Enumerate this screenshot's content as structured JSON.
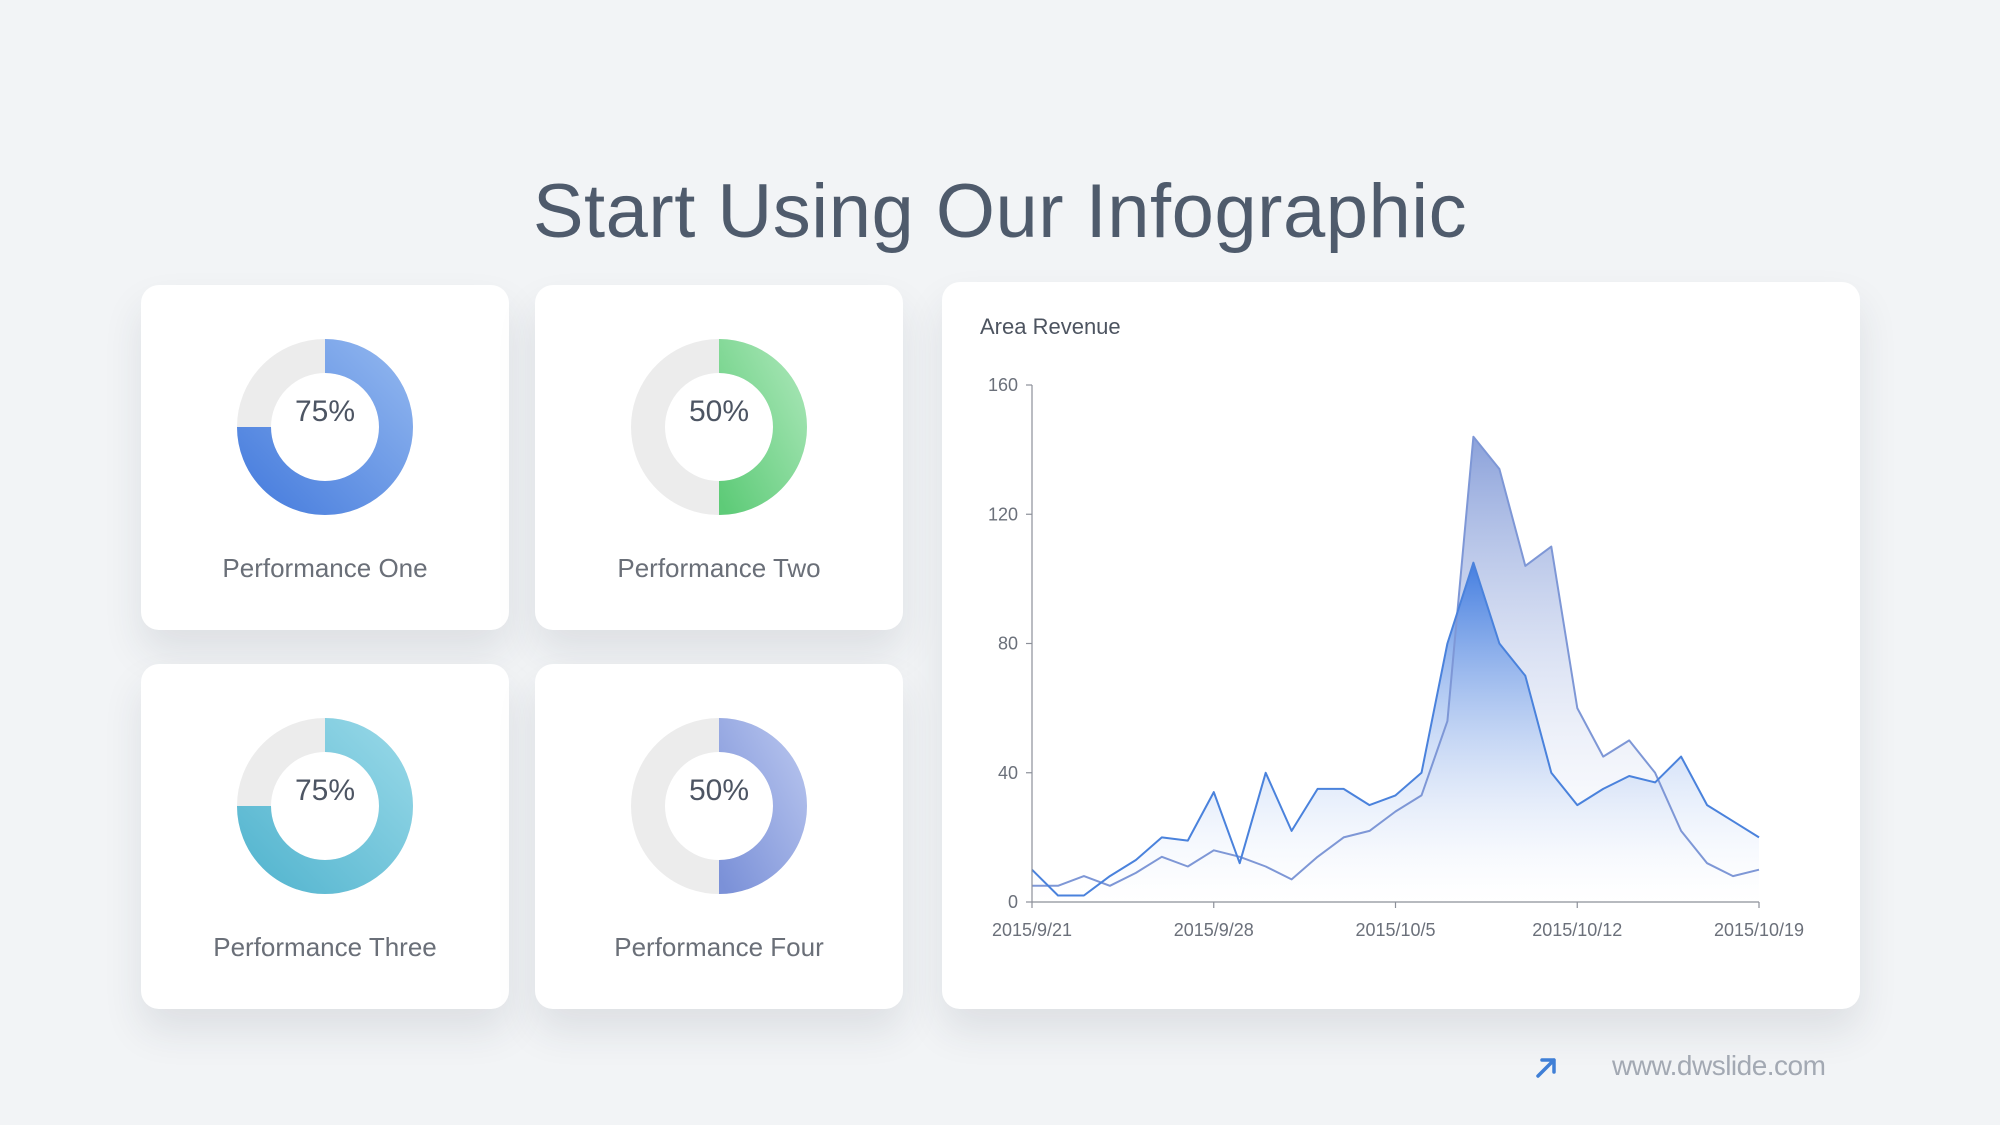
{
  "title": "Start Using Our Infographic",
  "cards": [
    {
      "label": "Performance One",
      "value": 75,
      "display": "75%",
      "color_start": "#4a7fde",
      "color_end": "#8db3ee",
      "track": "#ececec"
    },
    {
      "label": "Performance Two",
      "value": 50,
      "display": "50%",
      "color_start": "#5ecb78",
      "color_end": "#a3e4b2",
      "track": "#ececec"
    },
    {
      "label": "Performance Three",
      "value": 75,
      "display": "75%",
      "color_start": "#56b6d0",
      "color_end": "#93d6e6",
      "track": "#ececec"
    },
    {
      "label": "Performance Four",
      "value": 50,
      "display": "50%",
      "color_start": "#7b91d8",
      "color_end": "#b2c0ec",
      "track": "#ececec"
    }
  ],
  "chart_data": {
    "type": "area",
    "title": "Area Revenue",
    "x": [
      "2015/9/21",
      "2015/9/22",
      "2015/9/23",
      "2015/9/24",
      "2015/9/25",
      "2015/9/26",
      "2015/9/27",
      "2015/9/28",
      "2015/9/29",
      "2015/9/30",
      "2015/10/1",
      "2015/10/2",
      "2015/10/3",
      "2015/10/4",
      "2015/10/5",
      "2015/10/6",
      "2015/10/7",
      "2015/10/8",
      "2015/10/9",
      "2015/10/10",
      "2015/10/11",
      "2015/10/12",
      "2015/10/13",
      "2015/10/14",
      "2015/10/15",
      "2015/10/16",
      "2015/10/17",
      "2015/10/18",
      "2015/10/19"
    ],
    "x_ticks": [
      "2015/9/21",
      "2015/9/28",
      "2015/10/5",
      "2015/10/12",
      "2015/10/19"
    ],
    "ylim": [
      0,
      160
    ],
    "y_ticks": [
      0,
      40,
      80,
      120,
      160
    ],
    "series": [
      {
        "values": [
          5,
          5,
          8,
          5,
          9,
          14,
          11,
          16,
          14,
          11,
          7,
          14,
          20,
          22,
          28,
          33,
          56,
          144,
          134,
          104,
          110,
          60,
          45,
          50,
          40,
          22,
          12,
          8,
          10
        ],
        "color": "#7e97d6"
      },
      {
        "values": [
          10,
          2,
          2,
          8,
          13,
          20,
          19,
          34,
          12,
          40,
          22,
          35,
          35,
          30,
          33,
          40,
          80,
          105,
          80,
          70,
          40,
          30,
          35,
          39,
          37,
          45,
          30,
          25,
          20
        ],
        "color": "#4a82dc"
      }
    ]
  },
  "footer": {
    "url": "www.dwslide.com",
    "icon": "arrow-up-right-icon",
    "accent": "#3f7fd6"
  }
}
